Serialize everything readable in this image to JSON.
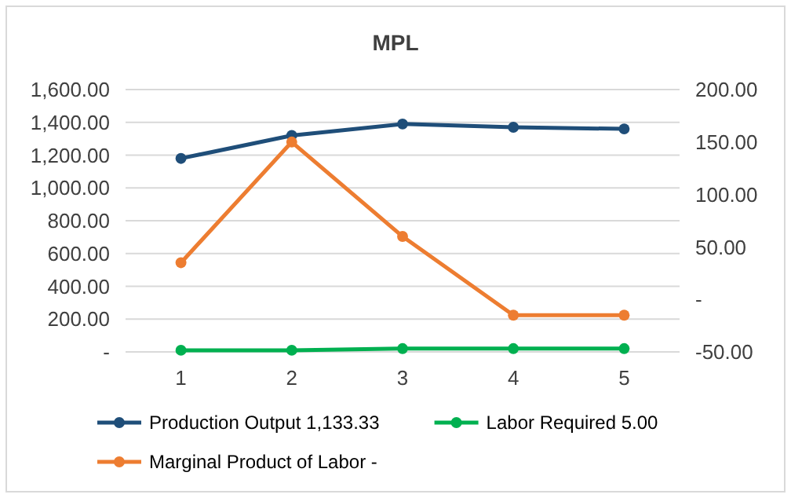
{
  "chart_data": {
    "type": "line",
    "title": "MPL",
    "categories": [
      "1",
      "2",
      "3",
      "4",
      "5"
    ],
    "series": [
      {
        "name": "Production Output  1,133.33",
        "color": "#1f4e79",
        "values": [
          1180,
          1320,
          1390,
          1370,
          1360
        ]
      },
      {
        "name": "Labor Required  5.00",
        "color": "#00b050",
        "values": [
          10,
          10,
          20,
          20,
          20
        ]
      },
      {
        "name": "Marginal Product of Labor -",
        "color": "#ed7d31",
        "axis": "y2",
        "values": [
          35,
          150,
          60,
          -15,
          -15
        ]
      }
    ],
    "ylim": [
      0,
      1600
    ],
    "yticks": [
      {
        "value": 0,
        "label": "-"
      },
      {
        "value": 200,
        "label": "200.00"
      },
      {
        "value": 400,
        "label": "400.00"
      },
      {
        "value": 600,
        "label": "600.00"
      },
      {
        "value": 800,
        "label": "800.00"
      },
      {
        "value": 1000,
        "label": "1,000.00"
      },
      {
        "value": 1200,
        "label": "1,200.00"
      },
      {
        "value": 1400,
        "label": "1,400.00"
      },
      {
        "value": 1600,
        "label": "1,600.00"
      }
    ],
    "y2lim": [
      -50,
      200
    ],
    "y2ticks": [
      {
        "value": -50,
        "label": "-50.00"
      },
      {
        "value": 0,
        "label": "-"
      },
      {
        "value": 50,
        "label": "50.00"
      },
      {
        "value": 100,
        "label": "100.00"
      },
      {
        "value": 150,
        "label": "150.00"
      },
      {
        "value": 200,
        "label": "200.00"
      }
    ],
    "grid": "y",
    "legend": "bottom",
    "marker": "circle",
    "line_style": "solid"
  }
}
